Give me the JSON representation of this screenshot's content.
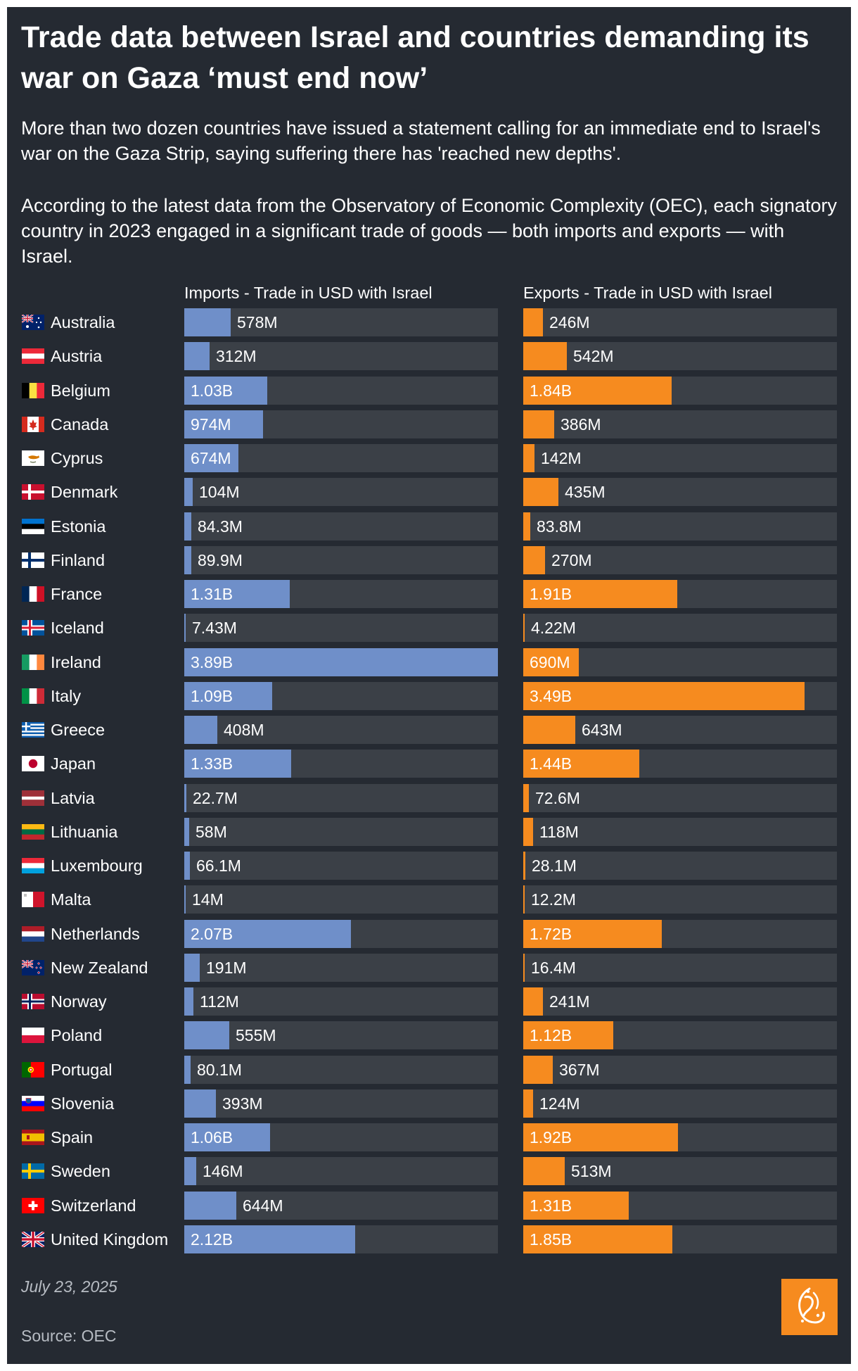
{
  "title": "Trade data between Israel and countries demanding its war on Gaza ‘must end now’",
  "intro_1": "More than two dozen countries have issued a statement calling for an immediate end to Israel's war on the Gaza Strip, saying suffering there has 'reached new depths'.",
  "intro_2": "According to the latest data from the Observatory of Economic Complexity (OEC), each signatory country in 2023 engaged in a significant trade of goods — both imports and exports — with Israel.",
  "date": "July 23, 2025",
  "source": "Source: OEC",
  "colors": {
    "background": "#252a32",
    "track": "#3b4047",
    "imports": "#6f8fc9",
    "exports": "#f68b1f",
    "text": "#ffffff",
    "muted": "#b7bcc3"
  },
  "chart_data": {
    "type": "bar",
    "orientation": "horizontal",
    "units": "USD",
    "scale_max": 3890000000,
    "categories": [
      "Australia",
      "Austria",
      "Belgium",
      "Canada",
      "Cyprus",
      "Denmark",
      "Estonia",
      "Finland",
      "France",
      "Iceland",
      "Ireland",
      "Italy",
      "Greece",
      "Japan",
      "Latvia",
      "Lithuania",
      "Luxembourg",
      "Malta",
      "Netherlands",
      "New Zealand",
      "Norway",
      "Poland",
      "Portugal",
      "Slovenia",
      "Spain",
      "Sweden",
      "Switzerland",
      "United Kingdom"
    ],
    "flags": [
      "au",
      "at",
      "be",
      "ca",
      "cy",
      "dk",
      "ee",
      "fi",
      "fr",
      "is",
      "ie",
      "it",
      "gr",
      "jp",
      "lv",
      "lt",
      "lu",
      "mt",
      "nl",
      "nz",
      "no",
      "pl",
      "pt",
      "si",
      "es",
      "se",
      "ch",
      "gb"
    ],
    "series": [
      {
        "name": "Imports - Trade in USD with Israel",
        "color": "#6f8fc9",
        "values": [
          578000000,
          312000000,
          1030000000,
          974000000,
          674000000,
          104000000,
          84300000,
          89900000,
          1310000000,
          7430000,
          3890000000,
          1090000000,
          408000000,
          1330000000,
          22700000,
          58000000,
          66100000,
          14000000,
          2070000000,
          191000000,
          112000000,
          555000000,
          80100000,
          393000000,
          1060000000,
          146000000,
          644000000,
          2120000000
        ],
        "labels": [
          "578M",
          "312M",
          "1.03B",
          "974M",
          "674M",
          "104M",
          "84.3M",
          "89.9M",
          "1.31B",
          "7.43M",
          "3.89B",
          "1.09B",
          "408M",
          "1.33B",
          "22.7M",
          "58M",
          "66.1M",
          "14M",
          "2.07B",
          "191M",
          "112M",
          "555M",
          "80.1M",
          "393M",
          "1.06B",
          "146M",
          "644M",
          "2.12B"
        ]
      },
      {
        "name": "Exports - Trade in USD with Israel",
        "color": "#f68b1f",
        "values": [
          246000000,
          542000000,
          1840000000,
          386000000,
          142000000,
          435000000,
          83800000,
          270000000,
          1910000000,
          4220000,
          690000000,
          3490000000,
          643000000,
          1440000000,
          72600000,
          118000000,
          28100000,
          12200000,
          1720000000,
          16400000,
          241000000,
          1120000000,
          367000000,
          124000000,
          1920000000,
          513000000,
          1310000000,
          1850000000
        ],
        "labels": [
          "246M",
          "542M",
          "1.84B",
          "386M",
          "142M",
          "435M",
          "83.8M",
          "270M",
          "1.91B",
          "4.22M",
          "690M",
          "3.49B",
          "643M",
          "1.44B",
          "72.6M",
          "118M",
          "28.1M",
          "12.2M",
          "1.72B",
          "16.4M",
          "241M",
          "1.12B",
          "367M",
          "124M",
          "1.92B",
          "513M",
          "1.31B",
          "1.85B"
        ]
      }
    ]
  }
}
